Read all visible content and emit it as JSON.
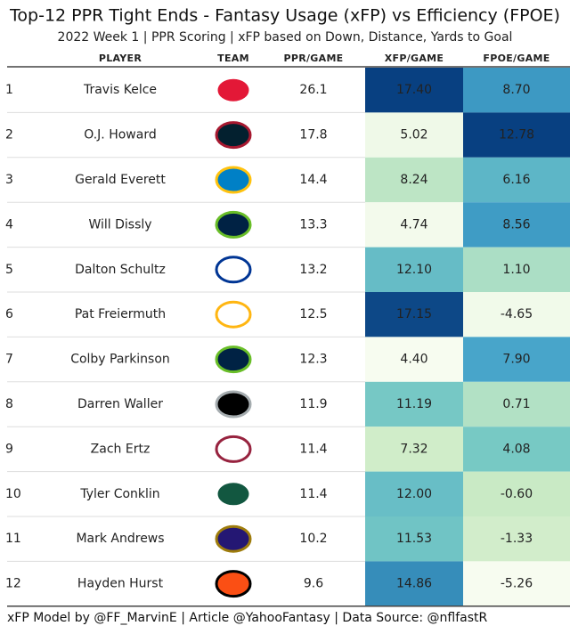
{
  "header": {
    "title": "Top-12 PPR Tight Ends - Fantasy Usage (xFP) vs Efficiency (FPOE)",
    "subtitle": "2022 Week 1 | PPR Scoring | xFP based on Down, Distance, Yards to Goal"
  },
  "table": {
    "columns": [
      "PLAYER",
      "TEAM",
      "PPR/GAME",
      "XFP/GAME",
      "FPOE/GAME"
    ],
    "rows": [
      [
        "1",
        "Travis Kelce",
        "26.1",
        "17.40",
        "8.70"
      ],
      [
        "2",
        "O.J. Howard",
        "17.8",
        "5.02",
        "12.78"
      ],
      [
        "3",
        "Gerald Everett",
        "14.4",
        "8.24",
        "6.16"
      ],
      [
        "4",
        "Will Dissly",
        "13.3",
        "4.74",
        "8.56"
      ],
      [
        "5",
        "Dalton Schultz",
        "13.2",
        "12.10",
        "1.10"
      ],
      [
        "6",
        "Pat Freiermuth",
        "12.5",
        "17.15",
        "-4.65"
      ],
      [
        "7",
        "Colby Parkinson",
        "12.3",
        "4.40",
        "7.90"
      ],
      [
        "8",
        "Darren Waller",
        "11.9",
        "11.19",
        "0.71"
      ],
      [
        "9",
        "Zach Ertz",
        "11.4",
        "7.32",
        "4.08"
      ],
      [
        "10",
        "Tyler Conklin",
        "11.4",
        "12.00",
        "-0.60"
      ],
      [
        "11",
        "Mark Andrews",
        "10.2",
        "11.53",
        "-1.33"
      ],
      [
        "12",
        "Hayden Hurst",
        "9.6",
        "14.86",
        "-5.26"
      ]
    ]
  },
  "footer": "xFP Model by @FF_MarvinE | Article @YahooFantasy | Data Source: @nflfastR"
}
